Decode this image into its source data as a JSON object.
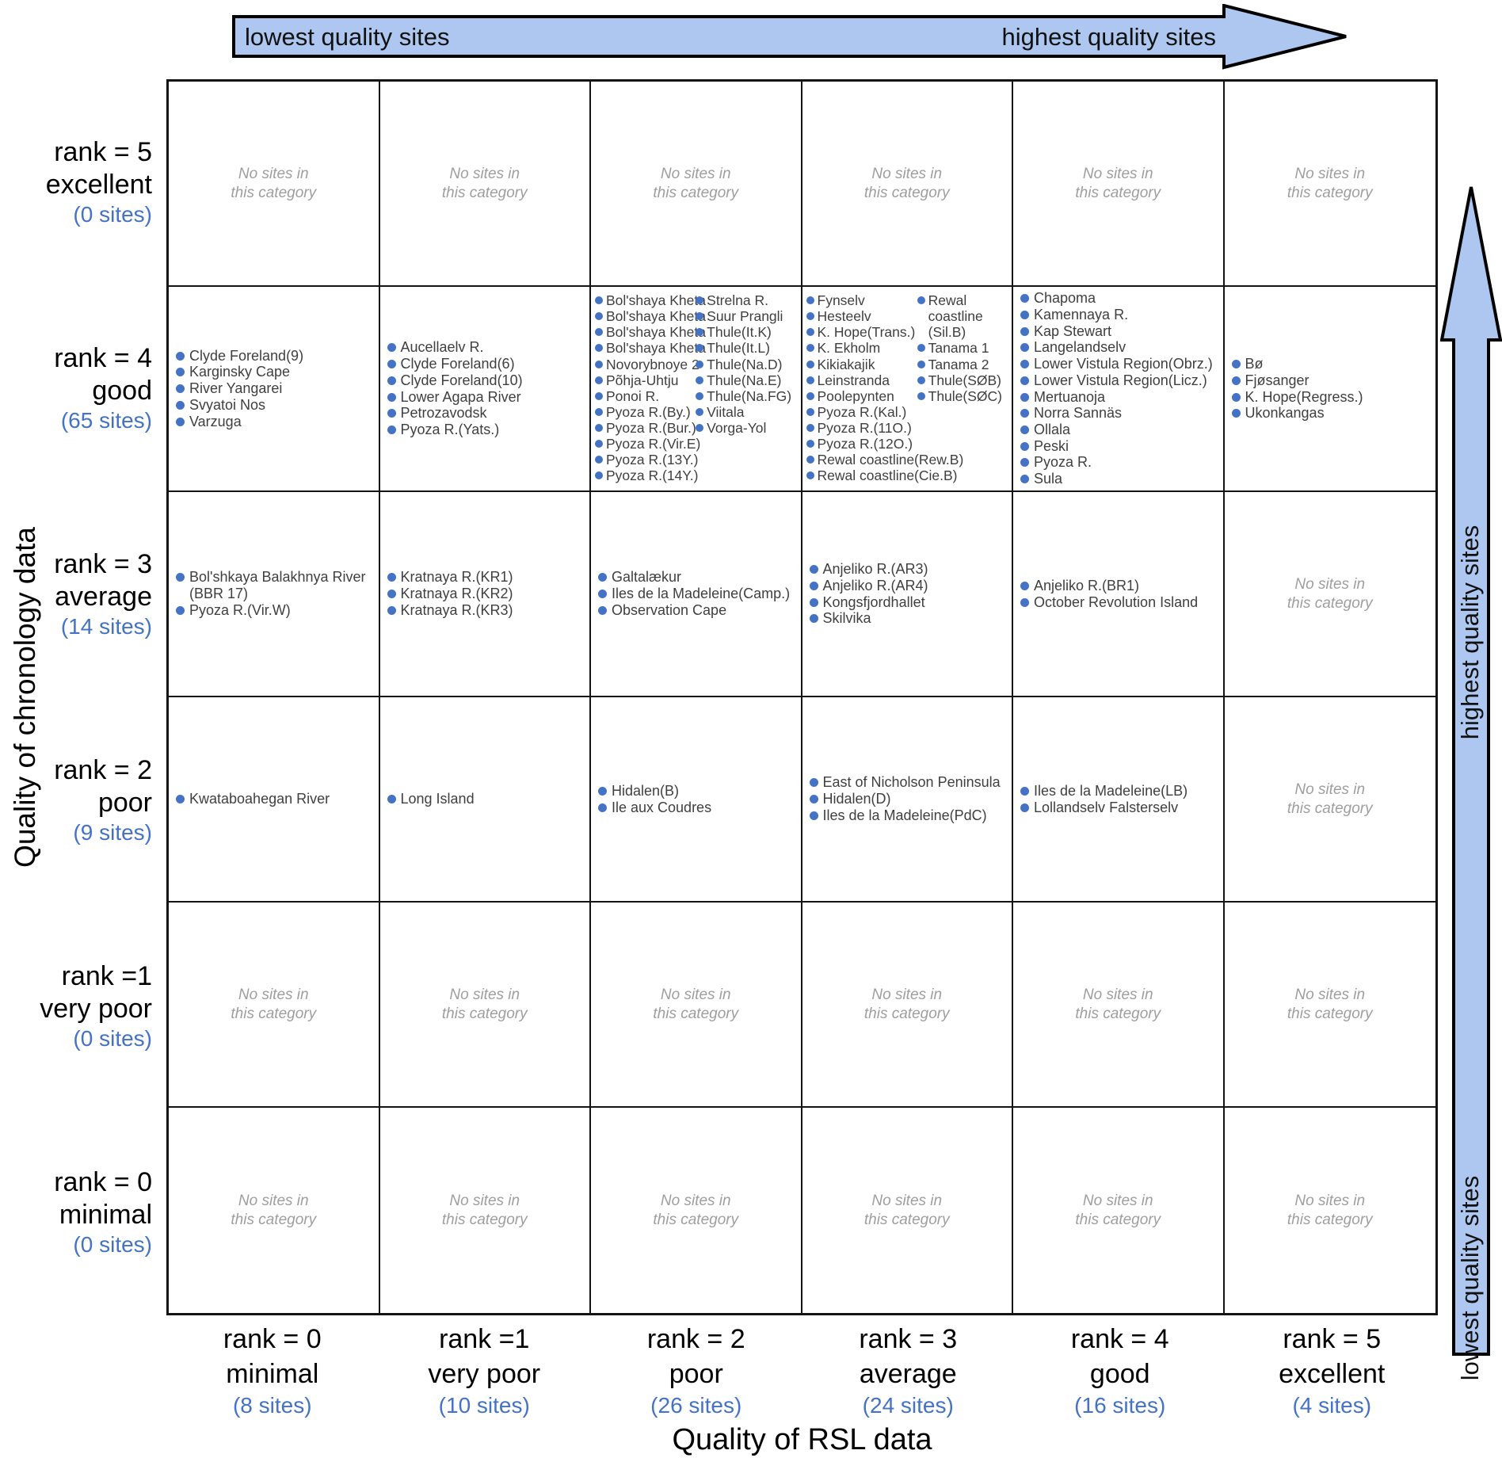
{
  "top_arrow": {
    "left_label": "lowest quality sites",
    "right_label": "highest quality sites"
  },
  "right_arrow": {
    "top_label": "highest quality sites",
    "bottom_label": "lowest quality sites"
  },
  "axis": {
    "x_title": "Quality of RSL data",
    "y_title": "Quality of chronology data"
  },
  "empty_cell_text": "No sites in\nthis category",
  "colors": {
    "dot": "#4472C4",
    "count_blue": "#4472C4",
    "arrow_fill": "#ADC7F0",
    "no_sites_gray": "#9E9E9E"
  },
  "row_labels": [
    {
      "rank": "rank = 5",
      "label": "excellent",
      "count": "(0 sites)"
    },
    {
      "rank": "rank = 4",
      "label": "good",
      "count": "(65 sites)"
    },
    {
      "rank": "rank = 3",
      "label": "average",
      "count": "(14 sites)"
    },
    {
      "rank": "rank = 2",
      "label": "poor",
      "count": "(9 sites)"
    },
    {
      "rank": "rank =1",
      "label": "very poor",
      "count": "(0 sites)"
    },
    {
      "rank": "rank = 0",
      "label": "minimal",
      "count": "(0 sites)"
    }
  ],
  "col_labels": [
    {
      "rank": "rank = 0",
      "label": "minimal",
      "count": "(8 sites)"
    },
    {
      "rank": "rank =1",
      "label": "very poor",
      "count": "(10 sites)"
    },
    {
      "rank": "rank = 2",
      "label": "poor",
      "count": "(26 sites)"
    },
    {
      "rank": "rank = 3",
      "label": "average",
      "count": "(24 sites)"
    },
    {
      "rank": "rank = 4",
      "label": "good",
      "count": "(16 sites)"
    },
    {
      "rank": "rank = 5",
      "label": "excellent",
      "count": "(4 sites)"
    }
  ],
  "cells": [
    [
      {
        "type": "empty"
      },
      {
        "type": "empty"
      },
      {
        "type": "empty"
      },
      {
        "type": "empty"
      },
      {
        "type": "empty"
      },
      {
        "type": "empty"
      }
    ],
    [
      {
        "type": "list",
        "sites": [
          "Clyde Foreland(9)",
          "Karginsky Cape",
          "River Yangarei",
          "Svyatoi Nos",
          "Varzuga"
        ]
      },
      {
        "type": "list",
        "sites": [
          "Aucellaelv R.",
          "Clyde Foreland(6)",
          "Clyde Foreland(10)",
          "Lower Agapa River",
          "Petrozavodsk",
          "Pyoza R.(Yats.)"
        ]
      },
      {
        "type": "list2",
        "columns": [
          [
            "Bol'shaya Kheta",
            "Bol'shaya Kheta",
            "Bol'shaya Kheta",
            "Bol'shaya Kheta",
            "Novorybnoye 2",
            "Põhja-Uhtju",
            "Ponoi R.",
            "Pyoza R.(By.)",
            "Pyoza R.(Bur.)",
            "Pyoza R.(Vir.E)",
            "Pyoza R.(13Y.)",
            "Pyoza R.(14Y.)"
          ],
          [
            "Strelna R.",
            "Suur Prangli",
            "Thule(It.K)",
            "Thule(It.L)",
            "Thule(Na.D)",
            "Thule(Na.E)",
            "Thule(Na.FG)",
            "Viitala",
            "Vorga-Yol"
          ]
        ]
      },
      {
        "type": "list2",
        "columns": [
          [
            "Fynselv",
            "Hesteelv",
            "K. Hope(Trans.)",
            "K. Ekholm",
            "Kikiakajik",
            "Leinstranda",
            "Poolepynten",
            "Pyoza R.(Kal.)",
            "Pyoza R.(11O.)",
            "Pyoza R.(12O.)",
            "Rewal coastline(Rew.B)",
            "Rewal coastline(Cie.B)"
          ],
          [
            "Rewal\ncoastline\n(Sil.B)",
            "Tanama 1",
            "Tanama 2",
            "Thule(SØB)",
            "Thule(SØC)"
          ]
        ]
      },
      {
        "type": "list",
        "sites": [
          "Chapoma",
          "Kamennaya R.",
          "Kap Stewart",
          "Langelandselv",
          "Lower Vistula Region(Obrz.)",
          "Lower Vistula Region(Licz.)",
          "Mertuanoja",
          "Norra Sannäs",
          "Ollala",
          "Peski",
          "Pyoza R.",
          "Sula"
        ]
      },
      {
        "type": "list",
        "sites": [
          "Bø",
          "Fjøsanger",
          "K. Hope(Regress.)",
          "Ukonkangas"
        ]
      }
    ],
    [
      {
        "type": "list",
        "sites": [
          "Bol'shkaya Balakhnya River (BBR 17)",
          "Pyoza R.(Vir.W)"
        ]
      },
      {
        "type": "list",
        "sites": [
          "Kratnaya R.(KR1)",
          "Kratnaya R.(KR2)",
          "Kratnaya R.(KR3)"
        ]
      },
      {
        "type": "list",
        "sites": [
          "Galtalækur",
          "Iles de la Madeleine(Camp.)",
          "Observation Cape"
        ]
      },
      {
        "type": "list",
        "sites": [
          "Anjeliko R.(AR3)",
          "Anjeliko R.(AR4)",
          "Kongsfjordhallet",
          "Skilvika"
        ]
      },
      {
        "type": "list",
        "sites": [
          "Anjeliko R.(BR1)",
          "October Revolution Island"
        ]
      },
      {
        "type": "empty"
      }
    ],
    [
      {
        "type": "list",
        "sites": [
          "Kwataboahegan River"
        ]
      },
      {
        "type": "list",
        "sites": [
          "Long Island"
        ]
      },
      {
        "type": "list",
        "sites": [
          "Hidalen(B)",
          "Ile aux Coudres"
        ]
      },
      {
        "type": "list",
        "sites": [
          "East of Nicholson Peninsula",
          "Hidalen(D)",
          "Iles de la Madeleine(PdC)"
        ]
      },
      {
        "type": "list",
        "sites": [
          "Iles de la Madeleine(LB)",
          "Lollandselv Falsterselv"
        ]
      },
      {
        "type": "empty"
      }
    ],
    [
      {
        "type": "empty"
      },
      {
        "type": "empty"
      },
      {
        "type": "empty"
      },
      {
        "type": "empty"
      },
      {
        "type": "empty"
      },
      {
        "type": "empty"
      }
    ],
    [
      {
        "type": "empty"
      },
      {
        "type": "empty"
      },
      {
        "type": "empty"
      },
      {
        "type": "empty"
      },
      {
        "type": "empty"
      },
      {
        "type": "empty"
      }
    ]
  ]
}
